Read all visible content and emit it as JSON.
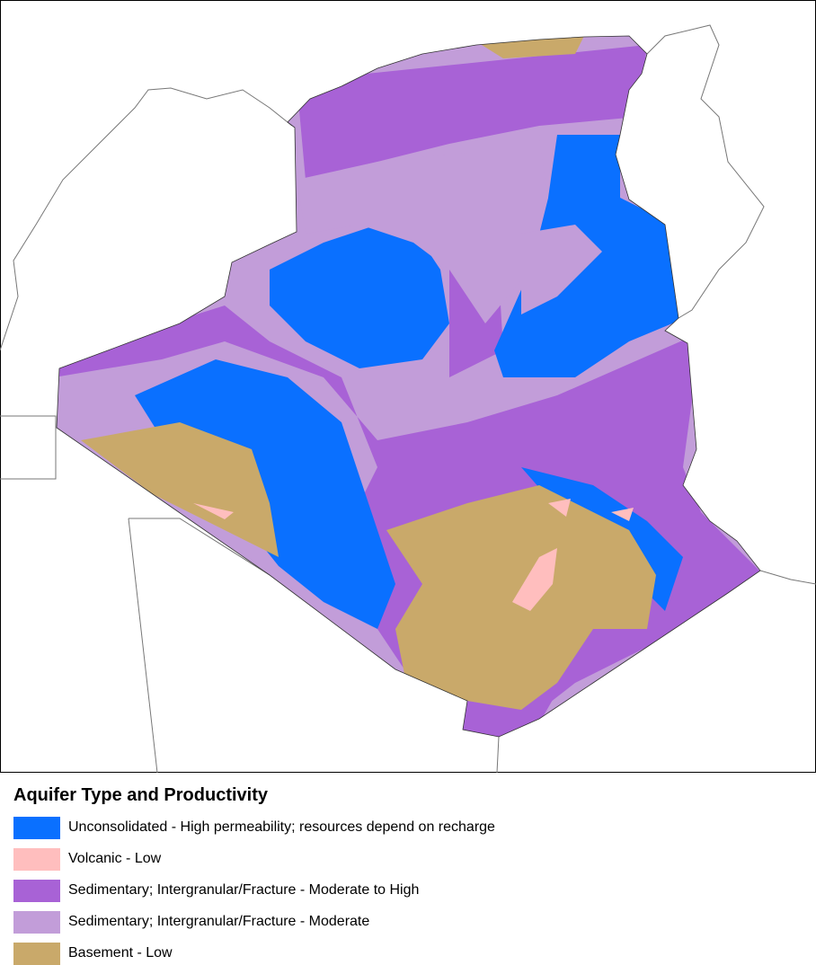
{
  "legend": {
    "title": "Aquifer Type and Productivity",
    "items": [
      {
        "label": "Unconsolidated - High permeability; resources depend on recharge",
        "color": "#0a70ff"
      },
      {
        "label": "Volcanic - Low",
        "color": "#ffbebe"
      },
      {
        "label": "Sedimentary; Intergranular/Fracture - Moderate to High",
        "color": "#a862d6"
      },
      {
        "label": "Sedimentary; Intergranular/Fracture - Moderate",
        "color": "#c29dd9"
      },
      {
        "label": "Basement - Low",
        "color": "#c9a96a"
      }
    ]
  }
}
